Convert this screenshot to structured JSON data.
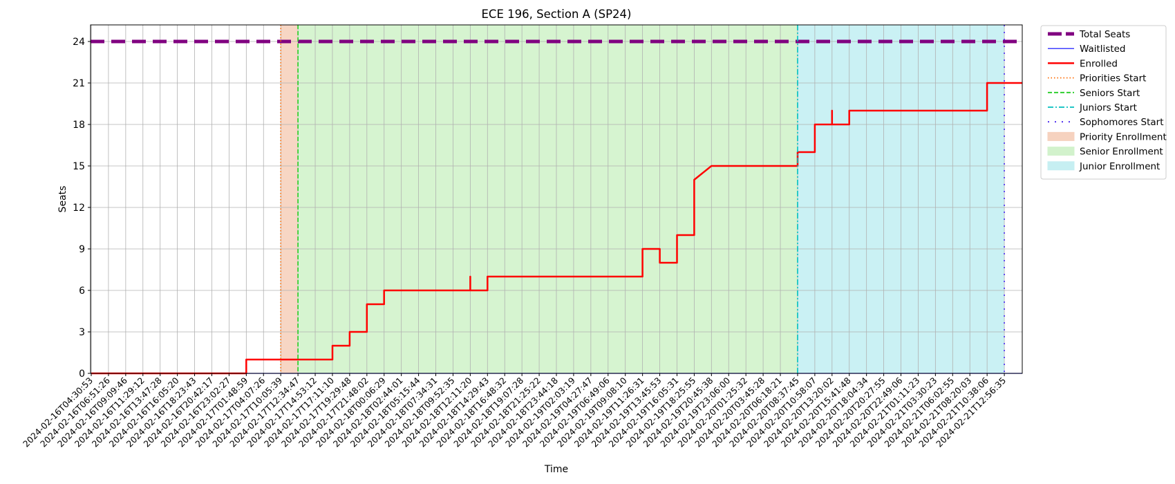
{
  "chart_data": {
    "type": "line",
    "title": "ECE 196, Section A (SP24)",
    "xlabel": "Time",
    "ylabel": "Seats",
    "ylim": [
      0,
      25.2
    ],
    "yticks": [
      0,
      3,
      6,
      9,
      12,
      15,
      18,
      21,
      24
    ],
    "grid": true,
    "legend_position": "outside-right-top",
    "x_tick_labels": [
      "2024-02-16T04:30:53",
      "2024-02-16T06:51:26",
      "2024-02-16T09:09:46",
      "2024-02-16T11:29:12",
      "2024-02-16T13:47:28",
      "2024-02-16T16:05:20",
      "2024-02-16T18:23:43",
      "2024-02-16T20:42:17",
      "2024-02-16T23:02:27",
      "2024-02-17T01:48:59",
      "2024-02-17T04:07:26",
      "2024-02-17T10:05:39",
      "2024-02-17T12:34:47",
      "2024-02-17T14:53:12",
      "2024-02-17T17:11:10",
      "2024-02-17T19:29:48",
      "2024-02-17T21:48:02",
      "2024-02-18T00:06:29",
      "2024-02-18T02:44:01",
      "2024-02-18T05:15:44",
      "2024-02-18T07:34:31",
      "2024-02-18T09:52:35",
      "2024-02-18T12:11:20",
      "2024-02-18T14:29:43",
      "2024-02-18T16:48:32",
      "2024-02-18T19:07:28",
      "2024-02-18T21:25:22",
      "2024-02-18T23:44:18",
      "2024-02-19T02:03:19",
      "2024-02-19T04:27:47",
      "2024-02-19T06:49:06",
      "2024-02-19T09:08:10",
      "2024-02-19T11:26:31",
      "2024-02-19T13:45:53",
      "2024-02-19T16:05:31",
      "2024-02-19T18:25:55",
      "2024-02-19T20:45:38",
      "2024-02-19T23:06:00",
      "2024-02-20T01:25:32",
      "2024-02-20T03:45:28",
      "2024-02-20T06:18:21",
      "2024-02-20T08:37:45",
      "2024-02-20T10:58:07",
      "2024-02-20T13:20:02",
      "2024-02-20T15:41:48",
      "2024-02-20T18:04:34",
      "2024-02-20T20:27:55",
      "2024-02-20T22:49:06",
      "2024-02-21T01:11:23",
      "2024-02-21T03:30:23",
      "2024-02-21T06:02:55",
      "2024-02-21T08:20:03",
      "2024-02-21T10:38:06",
      "2024-02-21T12:56:35"
    ],
    "series": [
      {
        "name": "Total Seats",
        "color": "#800080",
        "style": "dashed-thick",
        "constant": 24
      },
      {
        "name": "Waitlisted",
        "color": "#0000ff",
        "style": "solid-thin",
        "constant": 0
      },
      {
        "name": "Enrolled",
        "color": "#ff0000",
        "style": "solid",
        "points": [
          [
            "2024-02-16T04:30:53",
            0
          ],
          [
            "2024-02-17T01:48:59",
            0
          ],
          [
            "2024-02-17T01:48:59",
            1
          ],
          [
            "2024-02-17T17:11:10",
            1
          ],
          [
            "2024-02-17T17:11:10",
            2
          ],
          [
            "2024-02-17T19:29:48",
            2
          ],
          [
            "2024-02-17T19:29:48",
            3
          ],
          [
            "2024-02-17T21:48:02",
            3
          ],
          [
            "2024-02-17T21:48:02",
            5
          ],
          [
            "2024-02-18T00:06:29",
            5
          ],
          [
            "2024-02-18T00:06:29",
            6
          ],
          [
            "2024-02-18T12:11:20",
            6
          ],
          [
            "2024-02-18T12:11:20",
            7
          ],
          [
            "2024-02-18T12:11:20",
            6
          ],
          [
            "2024-02-18T14:29:43",
            6
          ],
          [
            "2024-02-18T14:29:43",
            7
          ],
          [
            "2024-02-19T11:26:31",
            7
          ],
          [
            "2024-02-19T11:26:31",
            9
          ],
          [
            "2024-02-19T13:45:53",
            9
          ],
          [
            "2024-02-19T13:45:53",
            8
          ],
          [
            "2024-02-19T16:05:31",
            8
          ],
          [
            "2024-02-19T16:05:31",
            9
          ],
          [
            "2024-02-19T16:05:31",
            10
          ],
          [
            "2024-02-19T18:25:55",
            10
          ],
          [
            "2024-02-19T18:25:55",
            11
          ],
          [
            "2024-02-19T18:25:55",
            12
          ],
          [
            "2024-02-19T18:25:55",
            14
          ],
          [
            "2024-02-19T20:45:38",
            15
          ],
          [
            "2024-02-20T08:37:45",
            15
          ],
          [
            "2024-02-20T08:37:45",
            16
          ],
          [
            "2024-02-20T10:58:07",
            16
          ],
          [
            "2024-02-20T10:58:07",
            17
          ],
          [
            "2024-02-20T10:58:07",
            18
          ],
          [
            "2024-02-20T13:20:02",
            18
          ],
          [
            "2024-02-20T13:20:02",
            19
          ],
          [
            "2024-02-20T13:20:02",
            18
          ],
          [
            "2024-02-20T15:41:48",
            18
          ],
          [
            "2024-02-20T15:41:48",
            19
          ],
          [
            "2024-02-21T10:38:06",
            19
          ],
          [
            "2024-02-21T10:38:06",
            20
          ],
          [
            "2024-02-21T10:38:06",
            21
          ],
          [
            "2024-02-21T12:56:35",
            21
          ]
        ]
      }
    ],
    "milestones": [
      {
        "name": "Priorities Start",
        "color": "#ff6a00",
        "style": "dotted",
        "x": "2024-02-17T10:05:39"
      },
      {
        "name": "Seniors Start",
        "color": "#22cc22",
        "style": "dashed",
        "x": "2024-02-17T12:34:47"
      },
      {
        "name": "Juniors Start",
        "color": "#00bfbf",
        "style": "dashdot",
        "x": "2024-02-20T08:37:45"
      },
      {
        "name": "Sophomores Start",
        "color": "#4422ee",
        "style": "dotted-sparse",
        "x": "2024-02-21T12:56:35"
      }
    ],
    "regions": [
      {
        "name": "Priority Enrollment",
        "color": "#f4c8b0",
        "from": "2024-02-17T10:05:39",
        "to": "2024-02-17T12:34:47"
      },
      {
        "name": "Senior Enrollment",
        "color": "#c8f0c0",
        "from": "2024-02-17T12:34:47",
        "to": "2024-02-20T08:37:45"
      },
      {
        "name": "Junior Enrollment",
        "color": "#b8ecf0",
        "from": "2024-02-20T08:37:45",
        "to": "2024-02-21T12:56:35"
      }
    ]
  }
}
